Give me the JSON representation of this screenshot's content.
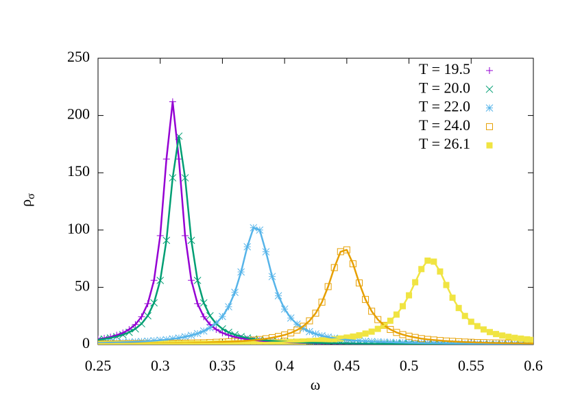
{
  "chart_data": {
    "type": "scatter",
    "x_label": "ω",
    "y_label": {
      "text": "ρ",
      "subscript": "σ"
    },
    "xlim": [
      0.25,
      0.6
    ],
    "ylim": [
      0,
      250
    ],
    "xticks": [
      0.25,
      0.3,
      0.35,
      0.4,
      0.45,
      0.5,
      0.55,
      0.6
    ],
    "yticks": [
      0,
      50,
      100,
      150,
      200,
      250
    ],
    "legend": "top-right",
    "x": [
      0.25,
      0.255,
      0.26,
      0.265,
      0.27,
      0.275,
      0.28,
      0.285,
      0.29,
      0.295,
      0.3,
      0.305,
      0.31,
      0.315,
      0.32,
      0.325,
      0.33,
      0.335,
      0.34,
      0.345,
      0.35,
      0.355,
      0.36,
      0.365,
      0.37,
      0.375,
      0.38,
      0.385,
      0.39,
      0.395,
      0.4,
      0.405,
      0.41,
      0.415,
      0.42,
      0.425,
      0.43,
      0.435,
      0.44,
      0.445,
      0.45,
      0.455,
      0.46,
      0.465,
      0.47,
      0.475,
      0.48,
      0.485,
      0.49,
      0.495,
      0.5,
      0.505,
      0.51,
      0.515,
      0.52,
      0.525,
      0.53,
      0.535,
      0.54,
      0.545,
      0.55,
      0.555,
      0.56,
      0.565,
      0.57,
      0.575,
      0.58,
      0.585,
      0.59,
      0.595,
      0.6
    ],
    "series": [
      {
        "name": "T = 19.5",
        "color": "#9400d3",
        "marker": "plus",
        "values": [
          4.7,
          5.5,
          6.6,
          8.2,
          10.2,
          13.2,
          17.5,
          24.3,
          35.7,
          56.1,
          95.1,
          162,
          212,
          162,
          95.1,
          56.1,
          35.7,
          24.3,
          17.5,
          13.2,
          10.2,
          8.2,
          6.6,
          5.5,
          4.7,
          4.0,
          3.4,
          3.0,
          2.7,
          2.4,
          2.1,
          1.9,
          1.7,
          1.5,
          1.4,
          1.3,
          1.2,
          1.1,
          1.0,
          0.9,
          0.9,
          0.8,
          0.8,
          0.7,
          0.7,
          0.6,
          0.6,
          0.6,
          0.5,
          0.5,
          0.5,
          0.5,
          0.4,
          0.4,
          0.4,
          0.4,
          0.4,
          0.3,
          0.3,
          0.3,
          0.3,
          0.3,
          0.3,
          0.3,
          0.3,
          0.3,
          0.2,
          0.2,
          0.2,
          0.2,
          0.2
        ]
      },
      {
        "name": "T = 20.0",
        "color": "#009e73",
        "marker": "cross",
        "values": [
          4.2,
          4.9,
          5.8,
          7.0,
          8.6,
          10.7,
          13.7,
          18.2,
          25.1,
          36.4,
          56,
          91,
          145.6,
          182,
          145.6,
          91,
          56,
          36.4,
          25.1,
          18.2,
          13.7,
          10.7,
          8.6,
          7.0,
          5.8,
          4.9,
          4.2,
          3.6,
          3.2,
          2.8,
          2.5,
          2.2,
          2.0,
          1.8,
          1.6,
          1.5,
          1.4,
          1.2,
          1.2,
          1.1,
          1.0,
          0.9,
          0.9,
          0.8,
          0.8,
          0.7,
          0.7,
          0.6,
          0.6,
          0.6,
          0.5,
          0.5,
          0.5,
          0.5,
          0.4,
          0.4,
          0.4,
          0.4,
          0.4,
          0.3,
          0.3,
          0.3,
          0.3,
          0.3,
          0.3,
          0.3,
          0.3,
          0.3,
          0.2,
          0.2,
          0.2
        ]
      },
      {
        "name": "T = 22.0",
        "color": "#56b4e9",
        "marker": "star",
        "values": [
          1.4,
          1.5,
          1.7,
          1.8,
          2.0,
          2.2,
          2.4,
          2.7,
          3.0,
          3.4,
          3.8,
          4.3,
          5.0,
          5.7,
          6.8,
          8.0,
          9.6,
          11.8,
          14.7,
          18.7,
          24.5,
          33,
          45.6,
          63.4,
          85.4,
          102,
          100,
          81,
          59.4,
          42.6,
          31,
          23.2,
          17.8,
          14.0,
          11.3,
          9.3,
          7.7,
          6.5,
          5.6,
          4.8,
          4.2,
          3.7,
          3.3,
          2.9,
          2.6,
          2.4,
          2.2,
          2.0,
          1.8,
          1.7,
          1.5,
          1.4,
          1.3,
          1.2,
          1.2,
          1.1,
          1.0,
          1.0,
          0.9,
          0.9,
          0.8,
          0.8,
          0.8,
          0.7,
          0.7,
          0.7,
          0.6,
          0.6,
          0.6,
          0.6,
          0.5
        ]
      },
      {
        "name": "T = 24.0",
        "color": "#e69f00",
        "marker": "square-open",
        "values": [
          0.5,
          0.6,
          0.6,
          0.7,
          0.7,
          0.8,
          0.8,
          0.9,
          0.9,
          1.0,
          1.0,
          1.1,
          1.1,
          1.2,
          1.3,
          1.4,
          1.5,
          1.6,
          1.8,
          2.0,
          2.2,
          2.4,
          2.7,
          3.0,
          3.4,
          3.9,
          4.4,
          5.1,
          6.0,
          7.1,
          8.4,
          10.2,
          12.7,
          16.0,
          20.7,
          27.4,
          37,
          50.6,
          67.2,
          81.1,
          82.7,
          70.5,
          53.8,
          39.4,
          29.1,
          21.8,
          16.8,
          13.2,
          10.6,
          8.7,
          7.3,
          6.2,
          5.2,
          4.5,
          4.0,
          3.5,
          3.1,
          2.8,
          2.5,
          2.2,
          2.0,
          1.8,
          1.7,
          1.5,
          1.4,
          1.3,
          1.2,
          1.1,
          1.1,
          1.0,
          0.9
        ]
      },
      {
        "name": "T = 26.1",
        "color": "#f0e442",
        "marker": "square-filled",
        "values": [
          0.4,
          0.4,
          0.4,
          0.5,
          0.5,
          0.5,
          0.5,
          0.6,
          0.6,
          0.6,
          0.6,
          0.7,
          0.7,
          0.7,
          0.8,
          0.8,
          0.8,
          0.9,
          0.9,
          1.0,
          1.0,
          1.1,
          1.2,
          1.2,
          1.3,
          1.4,
          1.5,
          1.6,
          1.8,
          1.9,
          2.1,
          2.3,
          2.5,
          2.7,
          3.0,
          3.3,
          3.7,
          4.2,
          4.7,
          5.3,
          6.1,
          7.0,
          8.1,
          9.6,
          11.3,
          13.7,
          16.7,
          20.8,
          26.2,
          33.5,
          43,
          54.4,
          65.9,
          73.3,
          72.4,
          63.8,
          52,
          40.9,
          31.9,
          25,
          19.9,
          16.1,
          13.2,
          10.9,
          9.2,
          7.9,
          6.8,
          5.9,
          5.2,
          4.6,
          4.1
        ]
      }
    ]
  }
}
